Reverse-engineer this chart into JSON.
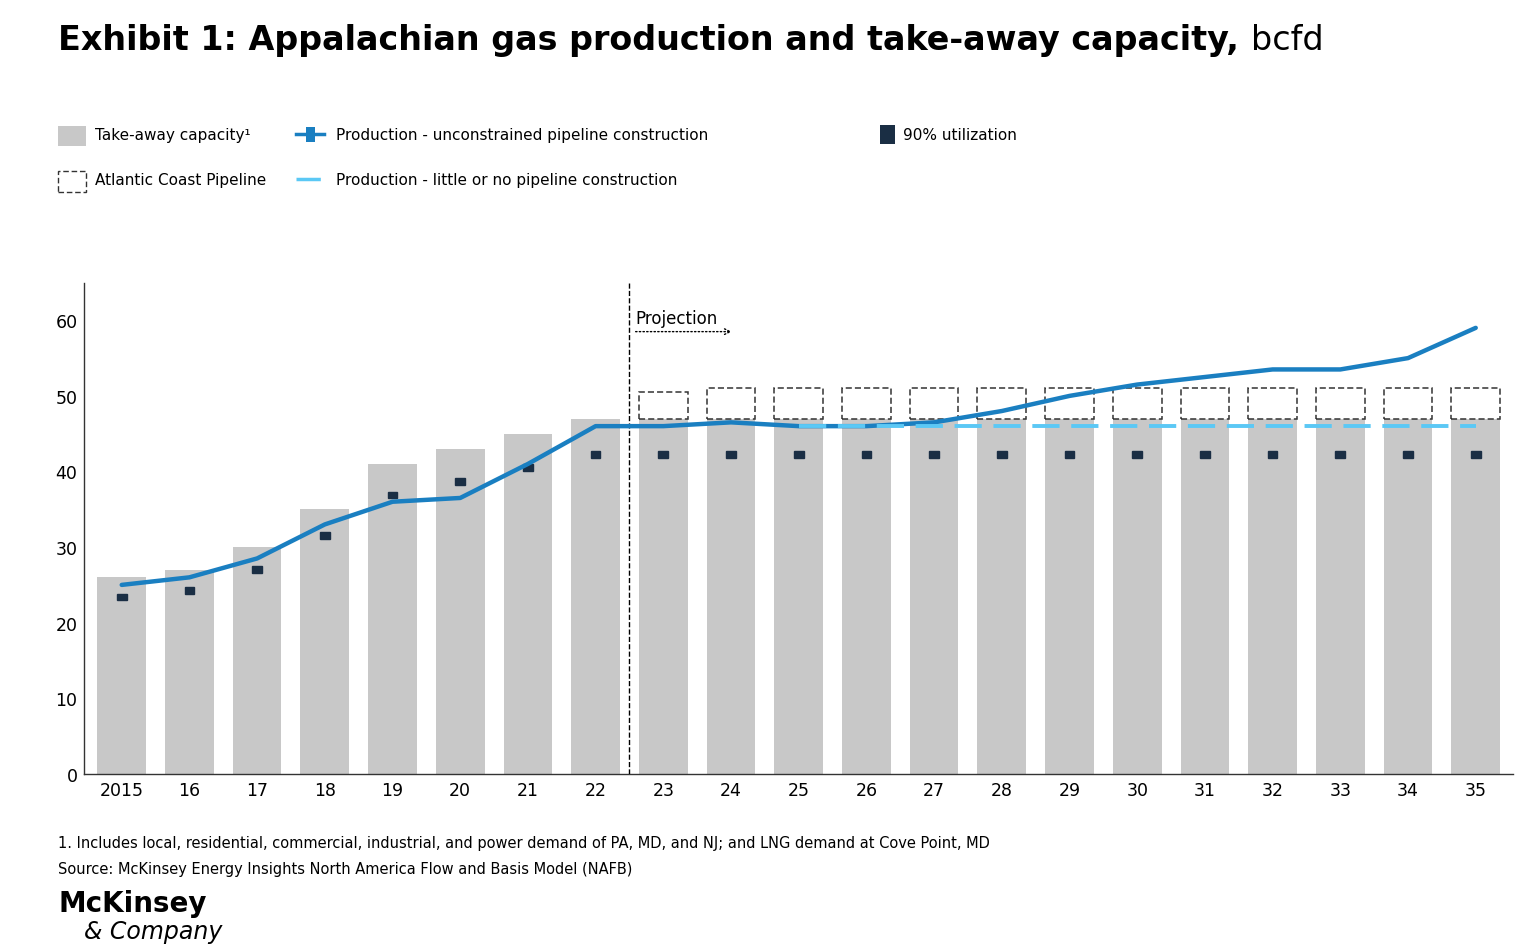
{
  "years": [
    2015,
    2016,
    2017,
    2018,
    2019,
    2020,
    2021,
    2022,
    2023,
    2024,
    2025,
    2026,
    2027,
    2028,
    2029,
    2030,
    2031,
    2032,
    2033,
    2034,
    2035
  ],
  "takeaway_capacity": [
    26,
    27,
    30,
    35,
    41,
    43,
    45,
    47,
    47,
    47,
    47,
    47,
    47,
    47,
    47,
    47,
    47,
    47,
    47,
    47,
    47
  ],
  "atlantic_coast_extra": [
    0,
    0,
    0,
    0,
    0,
    0,
    0,
    0,
    3.5,
    4,
    4,
    4,
    4,
    4,
    4,
    4,
    4,
    4,
    4,
    4,
    4
  ],
  "production_unconstrained": [
    25.0,
    26.0,
    28.5,
    33.0,
    36.0,
    36.5,
    41.0,
    46.0,
    46.0,
    46.5,
    46.0,
    46.0,
    46.5,
    48.0,
    50.0,
    51.5,
    52.5,
    53.5,
    53.5,
    55.0,
    59.0
  ],
  "production_little": [
    null,
    null,
    null,
    null,
    null,
    null,
    null,
    null,
    null,
    null,
    46.0,
    46.0,
    46.0,
    46.0,
    46.0,
    46.0,
    46.0,
    46.0,
    46.0,
    46.0,
    46.0
  ],
  "utilization_90_pct": [
    23.4,
    24.3,
    27.0,
    31.5,
    36.9,
    38.7,
    40.5,
    42.3,
    42.3,
    42.3,
    42.3,
    42.3,
    42.3,
    42.3,
    42.3,
    42.3,
    42.3,
    42.3,
    42.3,
    42.3,
    42.3
  ],
  "bar_color": "#c8c8c8",
  "acp_color": "#ffffff",
  "acp_border_color": "#333333",
  "production_line_color": "#1a7fc1",
  "production_dashed_color": "#5bc8f5",
  "utilization_color": "#1a2e44",
  "ylim": [
    0,
    65
  ],
  "yticks": [
    0,
    10,
    20,
    30,
    40,
    50,
    60
  ],
  "xtick_labels": [
    "2015",
    "16",
    "17",
    "18",
    "19",
    "20",
    "21",
    "22",
    "23",
    "24",
    "25",
    "26",
    "27",
    "28",
    "29",
    "30",
    "31",
    "32",
    "33",
    "34",
    "35"
  ],
  "title_bold": "Exhibit 1: Appalachian gas production and take-away capacity, ",
  "title_normal": "bcfd",
  "footnote1": "1. Includes local, residential, commercial, industrial, and power demand of PA, MD, and NJ; and LNG demand at Cove Point, MD",
  "footnote2": "Source: McKinsey Energy Insights North America Flow and Basis Model (NAFB)",
  "bg_color": "#ffffff",
  "legend_row1": [
    "Take-away capacity¹",
    "Production - unconstrained pipeline construction",
    "90% utilization"
  ],
  "legend_row2": [
    "Atlantic Coast Pipeline",
    "Production - little or no pipeline construction"
  ],
  "projection_label": "Projection",
  "mckinsey_line1": "McKinsey",
  "mckinsey_line2": "& Company"
}
